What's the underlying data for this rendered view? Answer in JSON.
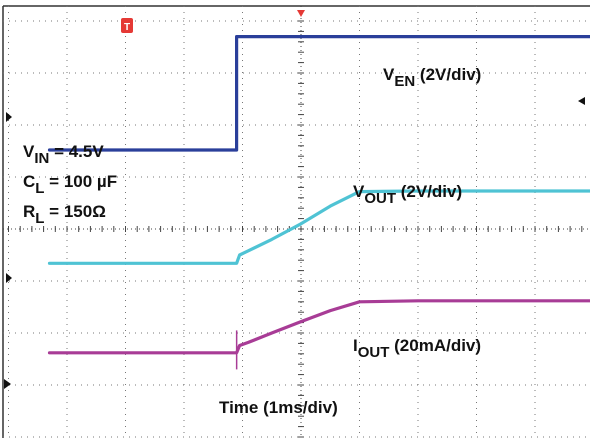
{
  "chart_data": {
    "type": "line",
    "xlabel": "Time (1ms/div)",
    "grid": true,
    "series": [
      {
        "name": "VEN (2V/div)",
        "color": "#2a3f9a",
        "x": [
          -4.3,
          -1.1,
          -1.1,
          5.8
        ],
        "y": [
          1.52,
          1.52,
          3.7,
          3.7
        ]
      },
      {
        "name": "VOUT (2V/div)",
        "color": "#4fc3d4",
        "x": [
          -4.3,
          -1.1,
          -1.05,
          -0.9,
          -0.5,
          0.0,
          0.5,
          1.0,
          2.0,
          5.8
        ],
        "y": [
          -0.66,
          -0.66,
          -0.5,
          -0.42,
          -0.2,
          0.1,
          0.44,
          0.72,
          0.73,
          0.73
        ]
      },
      {
        "name": "IOUT (20mA/div)",
        "color": "#a83c96",
        "x": [
          -4.3,
          -1.1,
          -1.05,
          -0.9,
          -0.5,
          0.0,
          0.5,
          1.0,
          2.0,
          5.8
        ],
        "y": [
          -2.38,
          -2.38,
          -2.24,
          -2.18,
          -2.0,
          -1.78,
          -1.57,
          -1.4,
          -1.38,
          -1.38
        ]
      }
    ],
    "annotations": [
      {
        "key": "ven",
        "main": "V",
        "sub": "EN",
        "rest": " (2V/div)"
      },
      {
        "key": "vout",
        "main": "V",
        "sub": "OUT",
        "rest": " (2V/div)"
      },
      {
        "key": "iout",
        "main": "I",
        "sub": "OUT",
        "rest": " (20mA/div)"
      },
      {
        "key": "vin",
        "main": "V",
        "sub": "IN",
        "rest": " = 4.5V"
      },
      {
        "key": "cl",
        "main": "C",
        "sub": "L",
        "rest": " = 100 µF"
      },
      {
        "key": "rl",
        "main": "R",
        "sub": "L",
        "rest": " = 150Ω"
      }
    ],
    "trigger_marker": "T"
  }
}
